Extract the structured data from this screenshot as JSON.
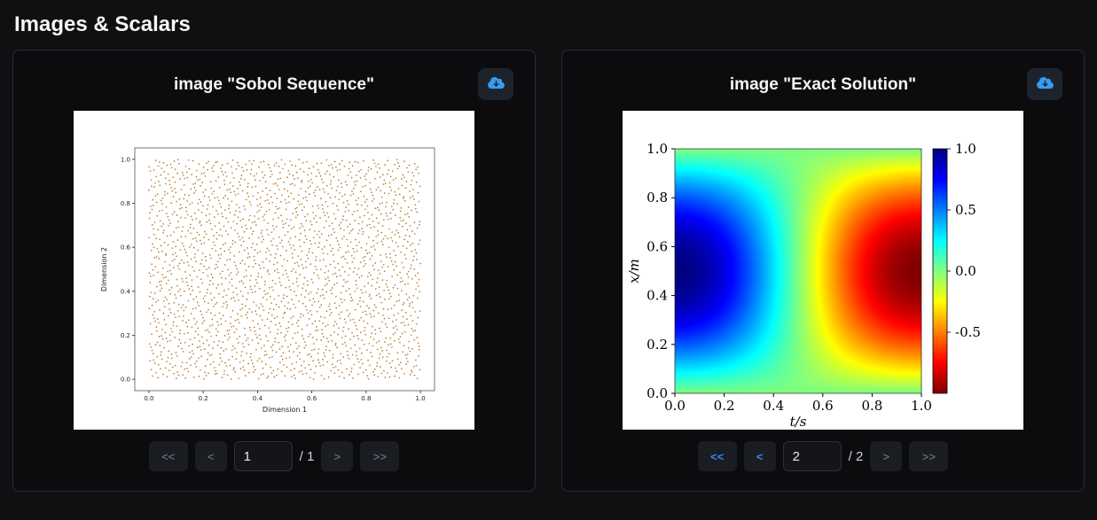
{
  "page": {
    "title": "Images & Scalars"
  },
  "colors": {
    "accent_blue": "#3b82f6",
    "icon_blue": "#369df1",
    "scatter_marker": "#bf7a2a"
  },
  "cards": [
    {
      "title": "image \"Sobol Sequence\"",
      "download_icon": "cloud-download-icon",
      "pager": {
        "first": {
          "label": "<<",
          "enabled": false
        },
        "prev": {
          "label": "<",
          "enabled": false
        },
        "page_value": "1",
        "total_label": "/ 1",
        "next": {
          "label": ">",
          "enabled": false
        },
        "last": {
          "label": ">>",
          "enabled": false
        }
      }
    },
    {
      "title": "image \"Exact Solution\"",
      "download_icon": "cloud-download-icon",
      "pager": {
        "first": {
          "label": "<<",
          "enabled": true
        },
        "prev": {
          "label": "<",
          "enabled": true
        },
        "page_value": "2",
        "total_label": "/ 2",
        "next": {
          "label": ">",
          "enabled": false
        },
        "last": {
          "label": ">>",
          "enabled": false
        }
      }
    }
  ],
  "chart_data": [
    {
      "type": "scatter",
      "title": "Sobol Sequence",
      "xlabel": "Dimension 1",
      "ylabel": "Dimension 2",
      "xlim": [
        0,
        1
      ],
      "ylim": [
        0,
        1
      ],
      "xticks": [
        "0.0",
        "0.2",
        "0.4",
        "0.6",
        "0.8",
        "1.0"
      ],
      "yticks": [
        "0.0",
        "0.2",
        "0.4",
        "0.6",
        "0.8",
        "1.0"
      ],
      "description": "Quasi-random low-discrepancy (Sobol) points uniformly covering the unit square",
      "point_count": 2100,
      "marker_color": "#bf7a2a"
    },
    {
      "type": "heatmap",
      "title": "Exact Solution",
      "xlabel": "t/s",
      "ylabel": "x/m",
      "xlim": [
        0,
        1
      ],
      "ylim": [
        0,
        1
      ],
      "xticks": [
        "0.0",
        "0.2",
        "0.4",
        "0.6",
        "0.8",
        "1.0"
      ],
      "yticks": [
        "0.0",
        "0.2",
        "0.4",
        "0.6",
        "0.8",
        "1.0"
      ],
      "function": "u(t,x) = sin(pi*x)*cos(pi*t)",
      "vmin": -1,
      "vmax": 1,
      "colormap": "jet reversed (+1 dark blue, 0 green, -1 dark red)",
      "colorbar_ticks": [
        "1.0",
        "0.5",
        "0.0",
        "-0.5"
      ]
    }
  ]
}
